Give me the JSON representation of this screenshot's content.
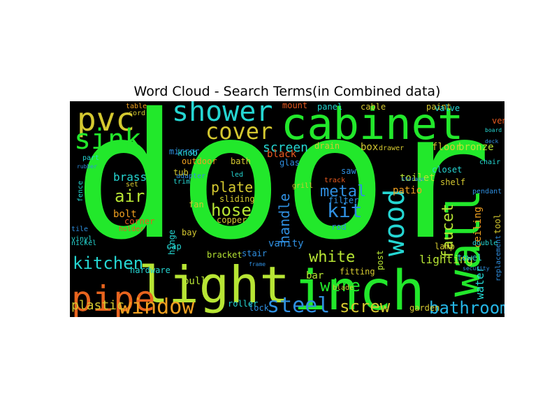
{
  "chart_data": {
    "type": "wordcloud",
    "title": "Word Cloud - Search Terms(in Combined data)",
    "background": "#000000",
    "palette": [
      "#22e82b",
      "#b7e534",
      "#25d6d2",
      "#2f8fe0",
      "#f0a020",
      "#e85a20",
      "#1fc6c8",
      "#2464c8"
    ],
    "words": [
      {
        "text": "door",
        "color": "#22e82b"
      },
      {
        "text": "cabinet",
        "color": "#22e82b"
      },
      {
        "text": "light",
        "color": "#b7e534"
      },
      {
        "text": "inch",
        "color": "#22e82b"
      },
      {
        "text": "shower",
        "color": "#25d6d2"
      },
      {
        "text": "pvc",
        "color": "#d4c830"
      },
      {
        "text": "sink",
        "color": "#22e82b"
      },
      {
        "text": "cover",
        "color": "#d4c830"
      },
      {
        "text": "pipe",
        "color": "#e8641e"
      },
      {
        "text": "window",
        "color": "#f0a020"
      },
      {
        "text": "wood",
        "color": "#25d6d2"
      },
      {
        "text": "wall",
        "color": "#22e82b"
      },
      {
        "text": "steel",
        "color": "#2f8fe0"
      },
      {
        "text": "kitchen",
        "color": "#25d6d2"
      },
      {
        "text": "bathroom",
        "color": "#25b6e6"
      },
      {
        "text": "screw",
        "color": "#d4c830"
      },
      {
        "text": "wire",
        "color": "#22e82b"
      },
      {
        "text": "hose",
        "color": "#b7e534"
      },
      {
        "text": "plate",
        "color": "#d4c830"
      },
      {
        "text": "metal",
        "color": "#2f8fe0"
      },
      {
        "text": "kit",
        "color": "#2f8fe0"
      },
      {
        "text": "water",
        "color": "#25d6d2"
      },
      {
        "text": "faucet",
        "color": "#b7e534"
      },
      {
        "text": "screen",
        "color": "#25d6d2"
      },
      {
        "text": "white",
        "color": "#b7e534"
      },
      {
        "text": "handle",
        "color": "#2f8fe0"
      },
      {
        "text": "plastic",
        "color": "#d4c830"
      },
      {
        "text": "lighting",
        "color": "#b7e534"
      },
      {
        "text": "air",
        "color": "#b7e534"
      },
      {
        "text": "brass",
        "color": "#25d6d2"
      },
      {
        "text": "outdoor",
        "color": "#f0a020"
      },
      {
        "text": "mirror",
        "color": "#2f8fe0"
      },
      {
        "text": "bolt",
        "color": "#f0a020"
      },
      {
        "text": "corner",
        "color": "#e85a20"
      },
      {
        "text": "hardware",
        "color": "#25d6d2"
      },
      {
        "text": "pull",
        "color": "#b7e534"
      },
      {
        "text": "fan",
        "color": "#d4c830"
      },
      {
        "text": "sliding",
        "color": "#d4c830"
      },
      {
        "text": "copper",
        "color": "#d4c830"
      },
      {
        "text": "vanity",
        "color": "#2f8fe0"
      },
      {
        "text": "bracket",
        "color": "#b7e534"
      },
      {
        "text": "lock",
        "color": "#2f8fe0"
      },
      {
        "text": "roller",
        "color": "#25d6d2"
      },
      {
        "text": "garden",
        "color": "#d4c830"
      },
      {
        "text": "black",
        "color": "#e85a20"
      },
      {
        "text": "glas",
        "color": "#2f8fe0"
      },
      {
        "text": "patio",
        "color": "#f0a020"
      },
      {
        "text": "toilet",
        "color": "#b7e534"
      },
      {
        "text": "drain",
        "color": "#d4c830"
      },
      {
        "text": "box",
        "color": "#d4c830"
      },
      {
        "text": "floor",
        "color": "#d4c830"
      },
      {
        "text": "bronze",
        "color": "#b7e534"
      },
      {
        "text": "lamp",
        "color": "#d4c830"
      },
      {
        "text": "towel",
        "color": "#25d6d2"
      },
      {
        "text": "bar",
        "color": "#b7e534"
      },
      {
        "text": "fitting",
        "color": "#d4c830"
      },
      {
        "text": "post",
        "color": "#b7e534"
      },
      {
        "text": "ceiling",
        "color": "#f0a020"
      },
      {
        "text": "tool",
        "color": "#d4c830"
      },
      {
        "text": "replacement",
        "color": "#2f8fe0"
      },
      {
        "text": "shelf",
        "color": "#d4c830"
      },
      {
        "text": "closet",
        "color": "#25d6d2"
      },
      {
        "text": "filter",
        "color": "#2f8fe0"
      },
      {
        "text": "rod",
        "color": "#2f8fe0"
      },
      {
        "text": "paint",
        "color": "#d4c830"
      },
      {
        "text": "valve",
        "color": "#25d6d2"
      },
      {
        "text": "panel",
        "color": "#25d6d2"
      },
      {
        "text": "cable",
        "color": "#d4c830"
      },
      {
        "text": "mount",
        "color": "#e85a20"
      },
      {
        "text": "vent",
        "color": "#e85a20"
      },
      {
        "text": "table",
        "color": "#f0a020"
      },
      {
        "text": "cord",
        "color": "#d4c830"
      },
      {
        "text": "part",
        "color": "#25d6d2"
      },
      {
        "text": "knob",
        "color": "#25d6d2"
      },
      {
        "text": "adapter",
        "color": "#2f8fe0"
      },
      {
        "text": "tub",
        "color": "#d4c830"
      },
      {
        "text": "trim",
        "color": "#25d6d2"
      },
      {
        "text": "set",
        "color": "#d4c830"
      },
      {
        "text": "bay",
        "color": "#d4c830"
      },
      {
        "text": "cap",
        "color": "#25d6d2"
      },
      {
        "text": "hinge",
        "color": "#25d6d2"
      },
      {
        "text": "fence",
        "color": "#25d6d2"
      },
      {
        "text": "vinyl",
        "color": "#25d6d2"
      },
      {
        "text": "stair",
        "color": "#2f8fe0"
      },
      {
        "text": "bath",
        "color": "#d4c830"
      },
      {
        "text": "led",
        "color": "#25d6d2"
      },
      {
        "text": "grill",
        "color": "#d4c830"
      },
      {
        "text": "saw",
        "color": "#2f8fe0"
      },
      {
        "text": "drawer",
        "color": "#d4c830"
      },
      {
        "text": "track",
        "color": "#e85a20"
      },
      {
        "text": "pendant",
        "color": "#2f8fe0"
      },
      {
        "text": "storage",
        "color": "#2f8fe0"
      },
      {
        "text": "blade",
        "color": "#d4c830"
      },
      {
        "text": "double",
        "color": "#25d6d2"
      },
      {
        "text": "board",
        "color": "#25d6d2"
      },
      {
        "text": "deck",
        "color": "#2f8fe0"
      },
      {
        "text": "chair",
        "color": "#25d6d2"
      },
      {
        "text": "holder",
        "color": "#e85a20"
      },
      {
        "text": "tile",
        "color": "#2f8fe0"
      },
      {
        "text": "nickel",
        "color": "#25d6d2"
      },
      {
        "text": "security",
        "color": "#2f8fe0"
      },
      {
        "text": "frame",
        "color": "#2f8fe0"
      },
      {
        "text": "rubber",
        "color": "#2f8fe0"
      }
    ]
  }
}
